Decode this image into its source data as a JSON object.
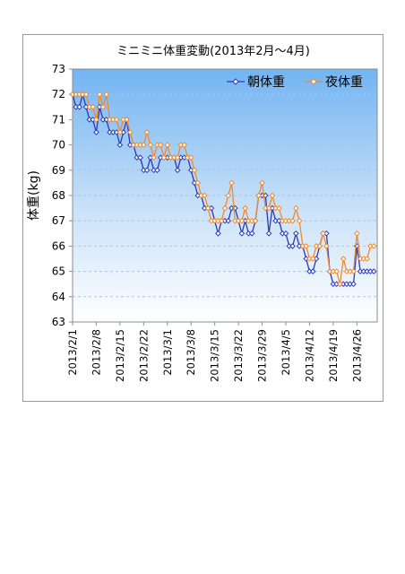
{
  "chart_data": {
    "type": "line",
    "title": "ミニミニ体重変動(2013年2月～4月)",
    "xlabel": "",
    "ylabel": "体重(kg)",
    "ylim": [
      63,
      73
    ],
    "yticks": [
      63,
      64,
      65,
      66,
      67,
      68,
      69,
      70,
      71,
      72,
      73
    ],
    "xlim": [
      "2013/2/1",
      "2013/5/2"
    ],
    "x_tick_labels": [
      "2013/2/1",
      "2013/2/8",
      "2013/2/15",
      "2013/2/22",
      "2013/3/1",
      "2013/3/8",
      "2013/3/15",
      "2013/3/22",
      "2013/3/29",
      "2013/4/5",
      "2013/4/12",
      "2013/4/19",
      "2013/4/26"
    ],
    "grid": "horizontal-dashed",
    "legend_position": "top-right",
    "background": "gradient white-to-blue",
    "x": [
      "2013/2/1",
      "2013/2/2",
      "2013/2/3",
      "2013/2/4",
      "2013/2/5",
      "2013/2/6",
      "2013/2/7",
      "2013/2/8",
      "2013/2/9",
      "2013/2/10",
      "2013/2/11",
      "2013/2/12",
      "2013/2/13",
      "2013/2/14",
      "2013/2/15",
      "2013/2/16",
      "2013/2/17",
      "2013/2/18",
      "2013/2/19",
      "2013/2/20",
      "2013/2/21",
      "2013/2/22",
      "2013/2/23",
      "2013/2/24",
      "2013/2/25",
      "2013/2/26",
      "2013/2/27",
      "2013/2/28",
      "2013/3/1",
      "2013/3/2",
      "2013/3/3",
      "2013/3/4",
      "2013/3/5",
      "2013/3/6",
      "2013/3/7",
      "2013/3/8",
      "2013/3/9",
      "2013/3/10",
      "2013/3/11",
      "2013/3/12",
      "2013/3/13",
      "2013/3/14",
      "2013/3/15",
      "2013/3/16",
      "2013/3/17",
      "2013/3/18",
      "2013/3/19",
      "2013/3/20",
      "2013/3/21",
      "2013/3/22",
      "2013/3/23",
      "2013/3/24",
      "2013/3/25",
      "2013/3/26",
      "2013/3/27",
      "2013/3/28",
      "2013/3/29",
      "2013/3/30",
      "2013/3/31",
      "2013/4/1",
      "2013/4/2",
      "2013/4/3",
      "2013/4/4",
      "2013/4/5",
      "2013/4/6",
      "2013/4/7",
      "2013/4/8",
      "2013/4/9",
      "2013/4/10",
      "2013/4/11",
      "2013/4/12",
      "2013/4/13",
      "2013/4/14",
      "2013/4/15",
      "2013/4/16",
      "2013/4/17",
      "2013/4/18",
      "2013/4/19",
      "2013/4/20",
      "2013/4/21",
      "2013/4/22",
      "2013/4/23",
      "2013/4/24",
      "2013/4/25",
      "2013/4/26",
      "2013/4/27",
      "2013/4/28",
      "2013/4/29",
      "2013/4/30",
      "2013/5/1"
    ],
    "series": [
      {
        "name": "朝体重",
        "color": "#2b3bb5",
        "marker": "diamond",
        "values": [
          72.0,
          71.5,
          71.5,
          72.0,
          71.5,
          71.0,
          71.0,
          70.5,
          71.5,
          71.0,
          71.0,
          70.5,
          70.5,
          70.5,
          70.0,
          70.5,
          71.0,
          70.0,
          70.0,
          69.5,
          69.5,
          69.0,
          69.0,
          69.5,
          69.0,
          69.0,
          69.5,
          69.5,
          69.5,
          69.5,
          69.5,
          69.0,
          69.5,
          69.5,
          69.5,
          69.0,
          68.5,
          68.0,
          68.0,
          67.5,
          67.5,
          67.5,
          67.0,
          66.5,
          67.0,
          67.0,
          67.0,
          67.5,
          67.5,
          67.0,
          66.5,
          67.0,
          66.5,
          66.5,
          67.0,
          68.0,
          68.0,
          68.0,
          66.5,
          67.5,
          67.0,
          67.0,
          66.5,
          66.5,
          66.0,
          66.0,
          66.5,
          66.0,
          66.0,
          65.5,
          65.0,
          65.0,
          65.5,
          66.0,
          66.5,
          66.5,
          65.0,
          64.5,
          64.5,
          64.5,
          64.5,
          64.5,
          64.5,
          64.5,
          66.0,
          65.0,
          65.0,
          65.0,
          65.0,
          65.0
        ]
      },
      {
        "name": "夜体重",
        "color": "#f08a2c",
        "marker": "diamond",
        "values": [
          72.0,
          72.0,
          72.0,
          72.0,
          72.0,
          71.5,
          71.5,
          71.0,
          72.0,
          71.5,
          72.0,
          71.0,
          71.0,
          71.0,
          70.5,
          71.0,
          71.0,
          70.5,
          70.0,
          70.0,
          70.0,
          70.0,
          70.5,
          70.0,
          69.5,
          70.0,
          70.0,
          69.5,
          70.0,
          69.5,
          69.5,
          69.5,
          70.0,
          70.0,
          69.5,
          69.5,
          69.0,
          68.5,
          68.0,
          68.0,
          67.5,
          67.0,
          67.0,
          67.0,
          67.0,
          67.5,
          68.0,
          68.5,
          67.0,
          67.0,
          67.0,
          67.5,
          67.0,
          67.0,
          67.0,
          68.0,
          68.5,
          67.5,
          67.5,
          68.0,
          67.5,
          67.5,
          67.0,
          67.0,
          67.0,
          67.0,
          67.5,
          67.0,
          66.0,
          66.0,
          65.5,
          65.5,
          66.0,
          66.0,
          66.5,
          66.0,
          65.0,
          65.0,
          65.0,
          64.5,
          65.5,
          65.0,
          65.0,
          65.0,
          66.5,
          65.5,
          65.5,
          65.5,
          66.0,
          66.0
        ]
      }
    ]
  }
}
